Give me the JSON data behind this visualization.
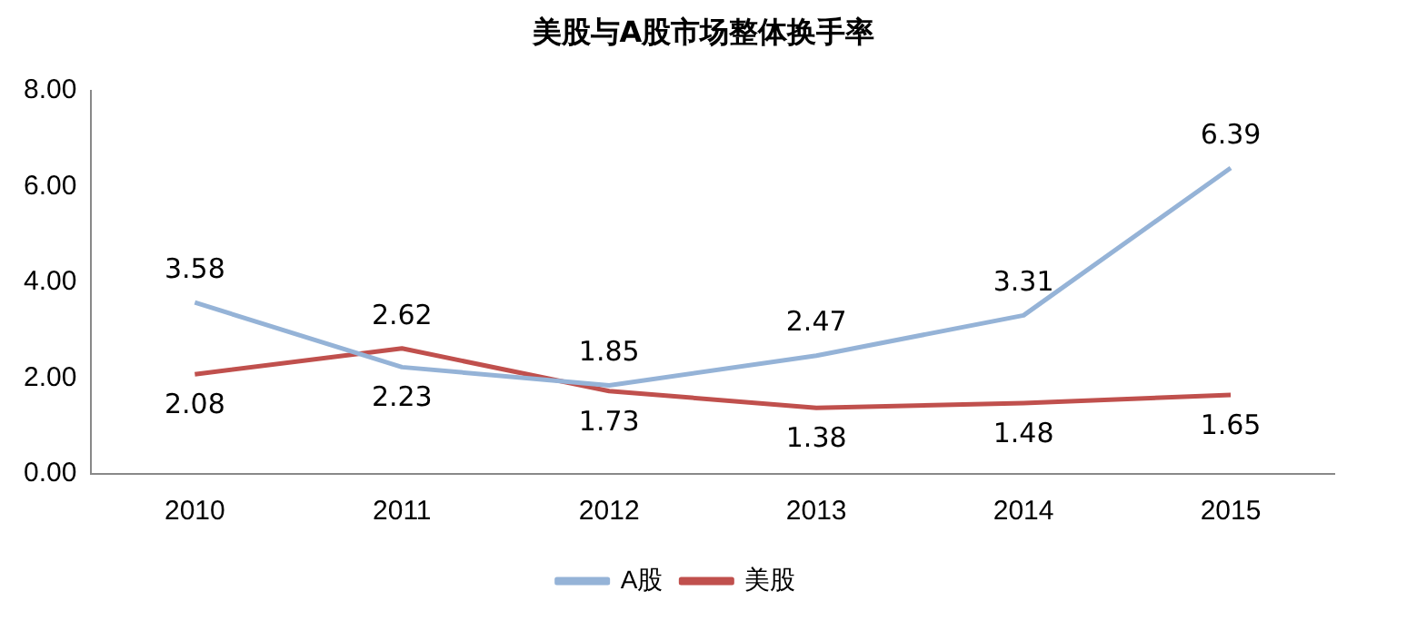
{
  "chart_data": {
    "type": "line",
    "title": "美股与A股市场整体换手率",
    "categories": [
      "2010",
      "2011",
      "2012",
      "2013",
      "2014",
      "2015"
    ],
    "series": [
      {
        "name": "A股",
        "color": "#95b3d7",
        "values": [
          3.58,
          2.23,
          1.85,
          2.47,
          3.31,
          6.39
        ]
      },
      {
        "name": "美股",
        "color": "#c0504d",
        "values": [
          2.08,
          2.62,
          1.73,
          1.38,
          1.48,
          1.65
        ]
      }
    ],
    "ylim": [
      0,
      8
    ],
    "yticks": [
      {
        "value": 0,
        "label": "0.00"
      },
      {
        "value": 2,
        "label": "2.00"
      },
      {
        "value": 4,
        "label": "4.00"
      },
      {
        "value": 6,
        "label": "6.00"
      },
      {
        "value": 8,
        "label": "8.00"
      }
    ],
    "grid": false,
    "legend": "bottom",
    "marker": "none",
    "line_style": "solid",
    "data_labels": true
  }
}
